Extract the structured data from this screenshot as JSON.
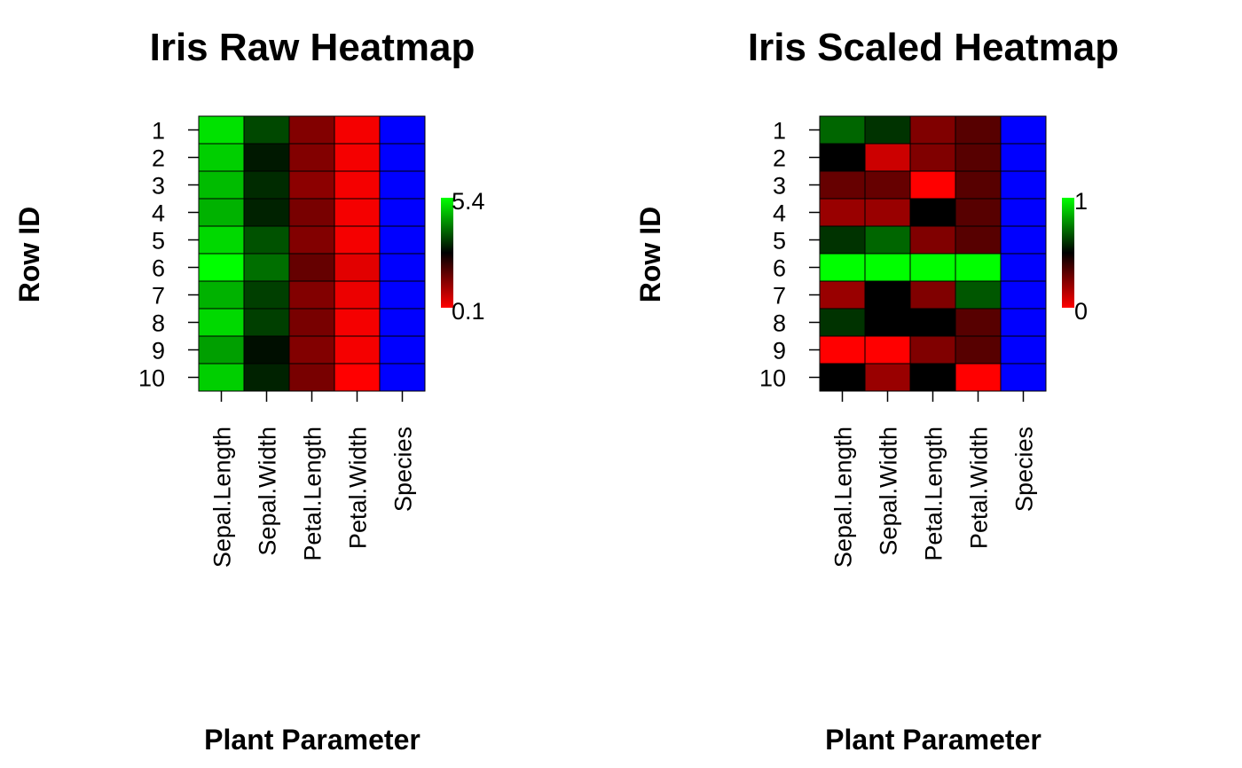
{
  "chart_data": [
    {
      "type": "heatmap",
      "title": "Iris Raw Heatmap",
      "xlabel": "Plant Parameter",
      "ylabel": "Row ID",
      "columns": [
        "Sepal.Length",
        "Sepal.Width",
        "Petal.Length",
        "Petal.Width",
        "Species"
      ],
      "rows": [
        "1",
        "2",
        "3",
        "4",
        "5",
        "6",
        "7",
        "8",
        "9",
        "10"
      ],
      "values": [
        [
          5.1,
          3.5,
          1.4,
          0.2,
          1
        ],
        [
          4.9,
          3.0,
          1.4,
          0.2,
          1
        ],
        [
          4.7,
          3.2,
          1.3,
          0.2,
          1
        ],
        [
          4.6,
          3.1,
          1.5,
          0.2,
          1
        ],
        [
          5.0,
          3.6,
          1.4,
          0.2,
          1
        ],
        [
          5.4,
          3.9,
          1.7,
          0.4,
          1
        ],
        [
          4.6,
          3.4,
          1.4,
          0.3,
          1
        ],
        [
          5.0,
          3.4,
          1.5,
          0.2,
          1
        ],
        [
          4.4,
          2.9,
          1.4,
          0.2,
          1
        ],
        [
          4.9,
          3.1,
          1.5,
          0.1,
          1
        ]
      ],
      "species_color": "#0000ff",
      "scale": {
        "min": 0.1,
        "max": 5.4,
        "low_color": "#ff0000",
        "mid_color": "#000000",
        "high_color": "#00ff00"
      },
      "legend": {
        "max_label": "5.4",
        "min_label": "0.1",
        "placement": "right"
      }
    },
    {
      "type": "heatmap",
      "title": "Iris Scaled Heatmap",
      "xlabel": "Plant Parameter",
      "ylabel": "Row ID",
      "columns": [
        "Sepal.Length",
        "Sepal.Width",
        "Petal.Length",
        "Petal.Width",
        "Species"
      ],
      "rows": [
        "1",
        "2",
        "3",
        "4",
        "5",
        "6",
        "7",
        "8",
        "9",
        "10"
      ],
      "values": [
        [
          0.7,
          0.6,
          0.25,
          0.33,
          1
        ],
        [
          0.5,
          0.1,
          0.25,
          0.33,
          1
        ],
        [
          0.3,
          0.3,
          0.0,
          0.33,
          1
        ],
        [
          0.2,
          0.2,
          0.5,
          0.33,
          1
        ],
        [
          0.6,
          0.7,
          0.25,
          0.33,
          1
        ],
        [
          1.0,
          1.0,
          1.0,
          1.0,
          1
        ],
        [
          0.2,
          0.5,
          0.25,
          0.67,
          1
        ],
        [
          0.6,
          0.5,
          0.5,
          0.33,
          1
        ],
        [
          0.0,
          0.0,
          0.25,
          0.33,
          1
        ],
        [
          0.5,
          0.2,
          0.5,
          0.0,
          1
        ]
      ],
      "species_color": "#0000ff",
      "scale": {
        "min": 0,
        "max": 1,
        "low_color": "#ff0000",
        "mid_color": "#000000",
        "high_color": "#00ff00"
      },
      "legend": {
        "max_label": "1",
        "min_label": "0",
        "placement": "right"
      }
    }
  ]
}
